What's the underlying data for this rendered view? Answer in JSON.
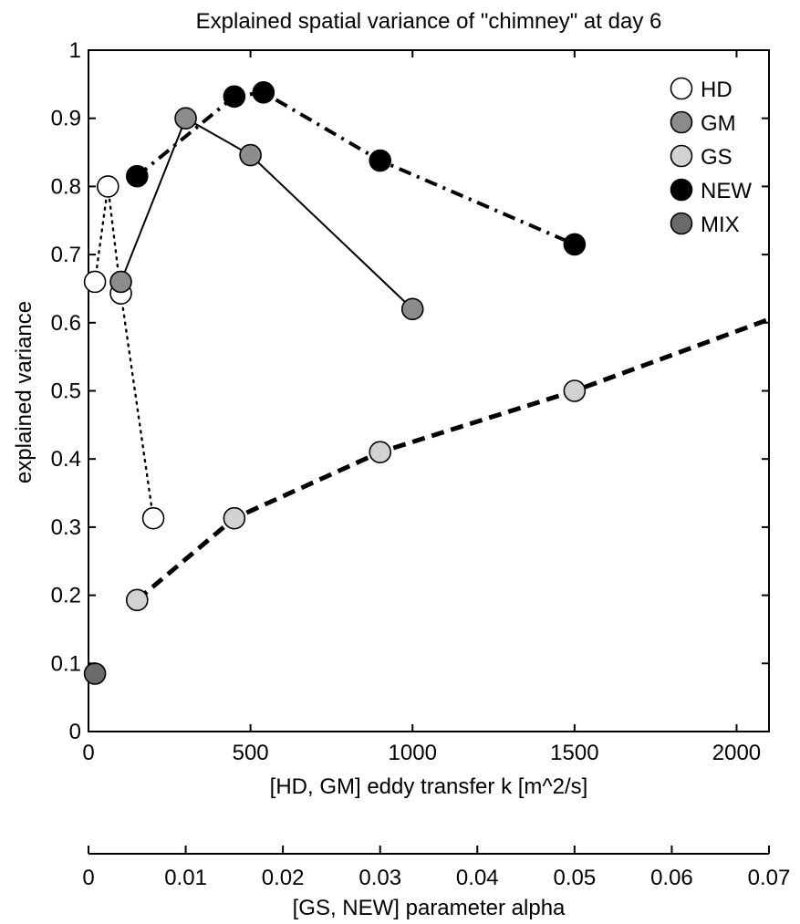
{
  "chart_data": {
    "type": "scatter",
    "title": "Explained spatial variance of \"chimney\" at day 6",
    "ylabel": "explained variance",
    "xlabel": "[HD, GM] eddy transfer k [m^2/s]",
    "x2label": "[GS, NEW] parameter alpha",
    "xlim": [
      0,
      2100
    ],
    "ylim": [
      0,
      1
    ],
    "x2lim": [
      0,
      0.07
    ],
    "xticks": [
      "0",
      "500",
      "1000",
      "1500",
      "2000"
    ],
    "yticks": [
      "0",
      "0.1",
      "0.2",
      "0.3",
      "0.4",
      "0.5",
      "0.6",
      "0.7",
      "0.8",
      "0.9",
      "1"
    ],
    "x2ticks": [
      "0",
      "0.01",
      "0.02",
      "0.03",
      "0.04",
      "0.05",
      "0.06",
      "0.07"
    ],
    "grid": false,
    "legend_position": "top-right",
    "series": [
      {
        "name": "HD",
        "axis": "k",
        "line": "dotted",
        "fill": "#ffffff",
        "x": [
          20,
          60,
          100,
          200
        ],
        "y": [
          0.66,
          0.8,
          0.643,
          0.313
        ]
      },
      {
        "name": "GM",
        "axis": "k",
        "line": "solid",
        "fill": "#8c8c8c",
        "x": [
          100,
          300,
          500,
          1000
        ],
        "y": [
          0.66,
          0.9,
          0.846,
          0.62
        ]
      },
      {
        "name": "GS",
        "axis": "alpha",
        "line": "dashed",
        "fill": "#d2d2d2",
        "x": [
          0.005,
          0.015,
          0.03,
          0.05,
          0.07
        ],
        "y": [
          0.193,
          0.313,
          0.41,
          0.5,
          0.605
        ],
        "marker_count": 4
      },
      {
        "name": "NEW",
        "axis": "alpha",
        "line": "dashdot",
        "fill": "#000000",
        "x": [
          0.005,
          0.015,
          0.018,
          0.03,
          0.05
        ],
        "y": [
          0.815,
          0.932,
          0.938,
          0.838,
          0.715
        ]
      },
      {
        "name": "MIX",
        "axis": "k",
        "line": "none",
        "fill": "#6a6a6a",
        "x": [
          20
        ],
        "y": [
          0.085
        ]
      }
    ]
  }
}
